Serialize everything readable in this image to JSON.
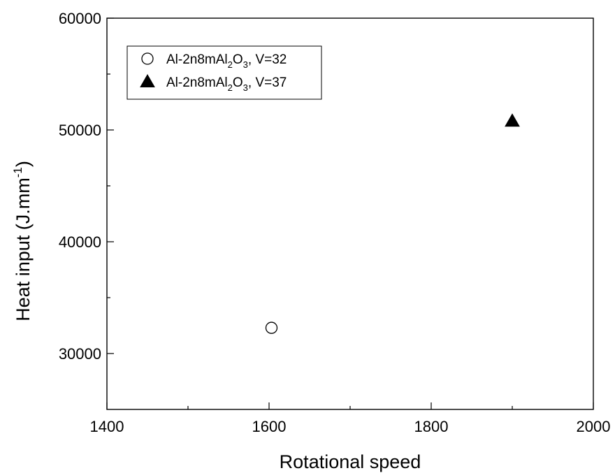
{
  "chart_data": {
    "type": "scatter",
    "xlabel": "Rotational speed",
    "ylabel": {
      "main": "Heat input (J.mm",
      "superscript": "-1",
      "close": ")"
    },
    "xlim": [
      1400,
      2000
    ],
    "ylim": [
      25000,
      60000
    ],
    "xticks_major": [
      1400,
      1600,
      1800,
      2000
    ],
    "xticks_minor": [
      1500,
      1700,
      1900
    ],
    "yticks_major": [
      30000,
      40000,
      50000,
      60000
    ],
    "yticks_minor": [
      35000,
      45000,
      55000
    ],
    "grid": false,
    "legend_position": "top-left",
    "series": [
      {
        "name": "Al-2n8mAl2O3, V=32",
        "legend_parts": {
          "pre": "Al-2n8mAl",
          "sub1": "2",
          "mid": "O",
          "sub2": "3",
          "post": ", V=32"
        },
        "marker": "open-circle",
        "color": "#000000",
        "points": [
          {
            "x": 1603,
            "y": 32300
          }
        ]
      },
      {
        "name": "Al-2n8mAl2O3, V=37",
        "legend_parts": {
          "pre": "Al-2n8mAl",
          "sub1": "2",
          "mid": "O",
          "sub2": "3",
          "post": ", V=37"
        },
        "marker": "filled-triangle",
        "color": "#000000",
        "points": [
          {
            "x": 1900,
            "y": 50800
          }
        ]
      }
    ]
  }
}
